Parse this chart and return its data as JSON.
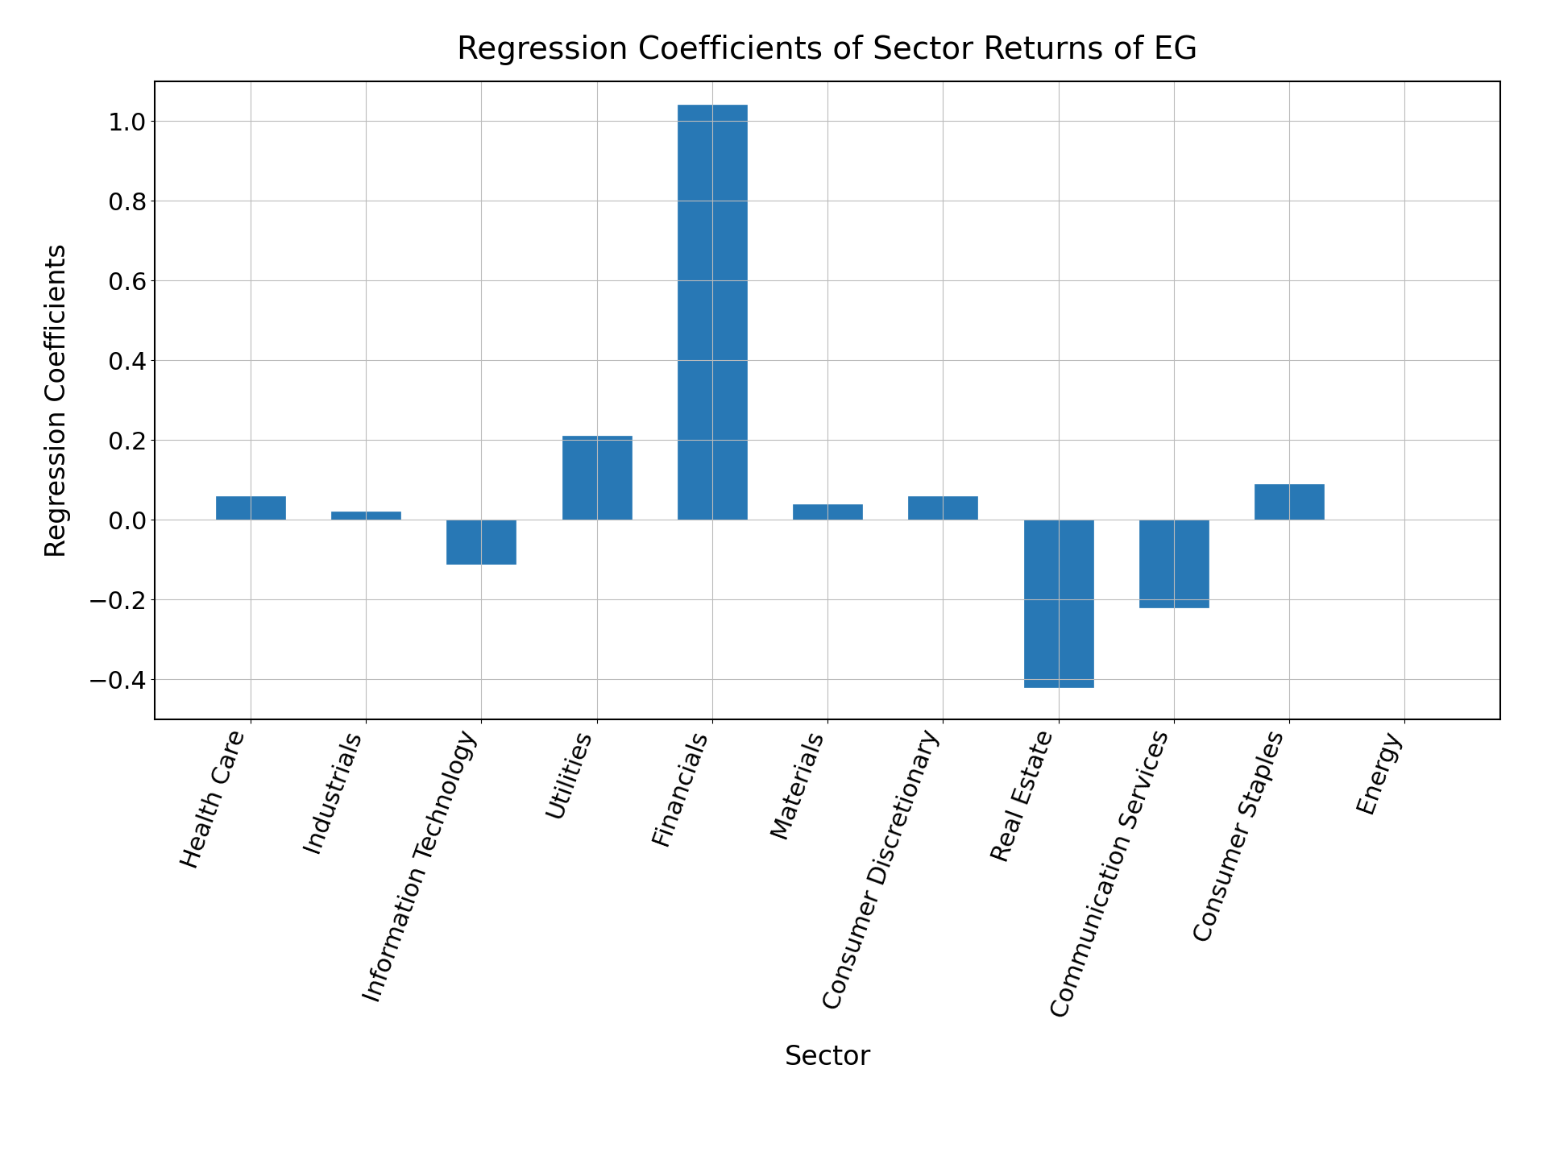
{
  "title": "Regression Coefficients of Sector Returns of EG",
  "xlabel": "Sector",
  "ylabel": "Regression Coefficients",
  "categories": [
    "Health Care",
    "Industrials",
    "Information Technology",
    "Utilities",
    "Financials",
    "Materials",
    "Consumer Discretionary",
    "Real Estate",
    "Communication Services",
    "Consumer Staples",
    "Energy"
  ],
  "values": [
    0.06,
    0.02,
    -0.11,
    0.21,
    1.04,
    0.04,
    0.06,
    -0.42,
    -0.22,
    0.09,
    0.0
  ],
  "bar_color": "#2878b5",
  "bar_edgecolor": "#2878b5",
  "ylim": [
    -0.5,
    1.1
  ],
  "yticks": [
    -0.4,
    -0.2,
    0.0,
    0.2,
    0.4,
    0.6,
    0.8,
    1.0
  ],
  "title_fontsize": 28,
  "axis_label_fontsize": 24,
  "tick_fontsize": 22,
  "background_color": "#ffffff",
  "grid_color": "#bbbbbb"
}
